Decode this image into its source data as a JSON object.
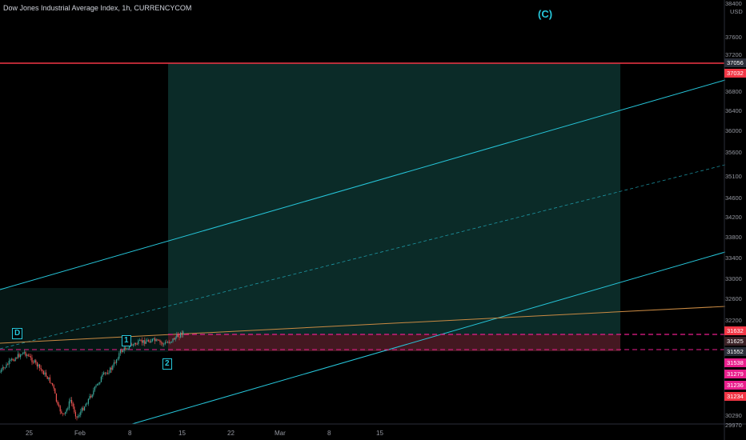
{
  "header": {
    "symbol_title": "Dow Jones Industrial Average Index, 1h, CURRENCYCOM",
    "currency": "USD",
    "top_cut_value": "38400"
  },
  "wave_labels": {
    "c": "(C)",
    "d": "D",
    "w1": "1",
    "w2": "2"
  },
  "price_axis": {
    "ticks": [
      "37600",
      "37200",
      "36800",
      "36400",
      "36000",
      "35600",
      "35100",
      "34600",
      "34200",
      "33800",
      "33400",
      "33000",
      "32600",
      "32200",
      "31800",
      "30290",
      "29970"
    ],
    "tags": [
      {
        "text": "37056",
        "color": "#2a2e39"
      },
      {
        "text": "37032",
        "color": "#f23645"
      },
      {
        "text": "31632",
        "color": "#f23645"
      },
      {
        "text": "31625",
        "color": "#3a2025"
      },
      {
        "text": "31552",
        "color": "#2a2e39"
      },
      {
        "text": "31538",
        "color": "#e91e8c"
      },
      {
        "text": "31279",
        "color": "#e91e8c"
      },
      {
        "text": "31236",
        "color": "#e91e8c"
      },
      {
        "text": "31234",
        "color": "#f23645"
      }
    ]
  },
  "time_axis": {
    "ticks": [
      "25",
      "Feb",
      "8",
      "15",
      "22",
      "Mar",
      "8",
      "15"
    ]
  },
  "colors": {
    "channel": "#26c6da",
    "target_line": "#f23645",
    "zone_green": "#1b5e57",
    "zone_red": "#5b1a23",
    "candle_up": "#3aa79a",
    "candle_down": "#ef5350",
    "trendline": "#c98a43",
    "dashed": "#e91e8c"
  }
}
